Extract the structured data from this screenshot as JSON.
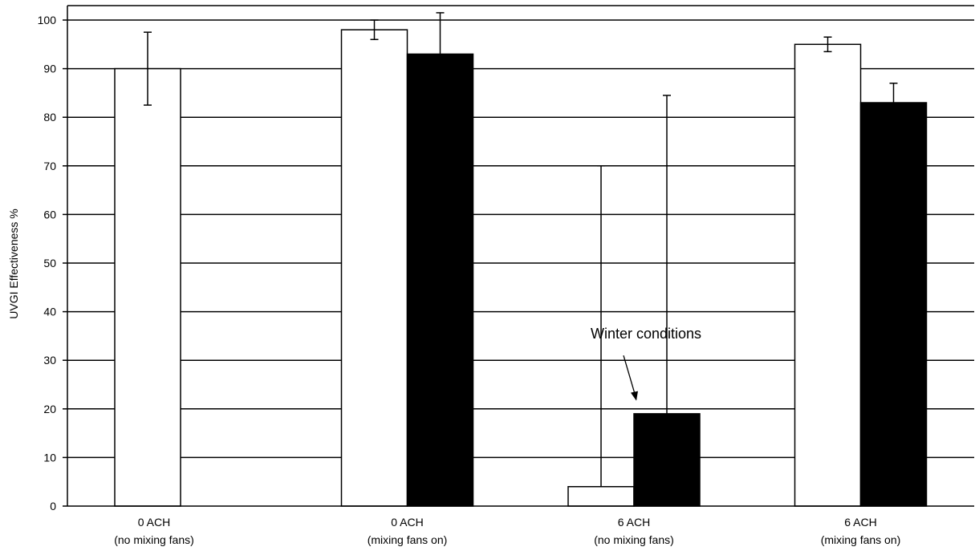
{
  "chart_data": {
    "type": "bar",
    "title": "",
    "xlabel": "",
    "ylabel": "UVGI Effectiveness %",
    "ylim": [
      0,
      100
    ],
    "yticks": [
      0,
      10,
      20,
      30,
      40,
      50,
      60,
      70,
      80,
      90,
      100
    ],
    "grid": true,
    "categories": [
      {
        "line1": "0 ACH",
        "line2": "(no mixing fans)"
      },
      {
        "line1": "0 ACH",
        "line2": "(mixing fans on)"
      },
      {
        "line1": "6 ACH",
        "line2": "(no mixing fans)"
      },
      {
        "line1": "6 ACH",
        "line2": "(mixing fans on)"
      }
    ],
    "series": [
      {
        "fill": "#ffffff",
        "values": [
          90,
          98,
          4,
          95
        ],
        "errors": [
          [
            82.5,
            97.5
          ],
          [
            96,
            100
          ],
          [
            null,
            70
          ],
          [
            93.5,
            96.5
          ]
        ]
      },
      {
        "fill": "#000000",
        "values": [
          null,
          93,
          19,
          83
        ],
        "errors": [
          null,
          [
            null,
            101.5
          ],
          [
            null,
            84.5
          ],
          [
            null,
            87
          ]
        ]
      }
    ],
    "annotation": {
      "text": "Winter conditions",
      "target_category": 2,
      "target_series": 1
    }
  }
}
